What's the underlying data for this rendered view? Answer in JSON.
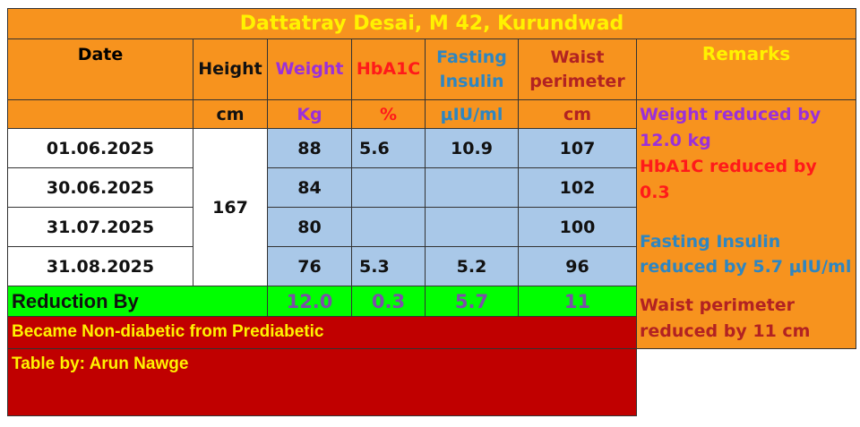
{
  "title": "Dattatray Desai, M 42, Kurundwad",
  "headers": {
    "date": "Date",
    "height": "Height",
    "weight": "Weight",
    "hba1c": "HbA1C",
    "fasting_insulin_1": "Fasting",
    "fasting_insulin_2": "Insulin",
    "waist_1": "Waist",
    "waist_2": "perimeter",
    "remarks": "Remarks"
  },
  "units": {
    "height": "cm",
    "weight": "Kg",
    "hba1c": "%",
    "fasting_insulin": "μIU/ml",
    "waist": "cm"
  },
  "height_value": "167",
  "rows": [
    {
      "date": "01.06.2025",
      "weight": "88",
      "hba1c": "5.6",
      "insulin": "10.9",
      "waist": "107"
    },
    {
      "date": "30.06.2025",
      "weight": "84",
      "hba1c": "",
      "insulin": "",
      "waist": "102"
    },
    {
      "date": "31.07.2025",
      "weight": "80",
      "hba1c": "",
      "insulin": "",
      "waist": "100"
    },
    {
      "date": "31.08.2025",
      "weight": "76",
      "hba1c": "5.3",
      "insulin": "5.2",
      "waist": "96"
    }
  ],
  "reduction": {
    "label": "Reduction By",
    "weight": "12.0",
    "hba1c": "0.3",
    "insulin": "5.7",
    "waist": "11"
  },
  "remarks": [
    {
      "text": "Weight reduced by 12.0 kg",
      "color": "#9B30D9"
    },
    {
      "text": "HbA1C reduced by 0.3",
      "color": "#FF1A1A"
    },
    {
      "text": "Fasting Insulin reduced by 5.7 μIU/ml",
      "color": "#2E86C1"
    },
    {
      "text": "Waist perimeter reduced by 11 cm",
      "color": "#B22222"
    }
  ],
  "footer": {
    "status": "Became Non-diabetic from Prediabetic",
    "credit": "Table by: Arun Nawge"
  },
  "colors": {
    "weight": "#9B30D9",
    "hba1c": "#FF1A1A",
    "insulin": "#2E86C1",
    "waist": "#B22222",
    "reduction_values": "#7B4FA8",
    "title": "#FFF200"
  }
}
